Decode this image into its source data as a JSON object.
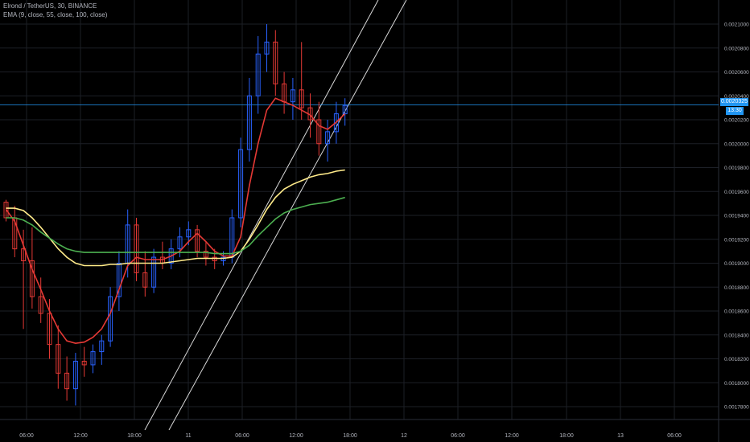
{
  "header": {
    "symbol_line": "Elrond / TetherUS, 30, BINANCE",
    "indicator_line": "EMA (9, close, 55, close, 100, close)"
  },
  "price_badge": {
    "price": "0.0020325",
    "countdown": "13:30"
  },
  "colors": {
    "background": "#000000",
    "grid": "#1c1f26",
    "up_candle": "#2962ff",
    "down_candle": "#e53935",
    "ema9": "#e53935",
    "ema55": "#ffeb8a",
    "ema100": "#4caf50",
    "trend_lines": "#d8d8d8",
    "price_line": "#2196f3"
  },
  "chart_data": {
    "type": "candlestick",
    "title": "Elrond / TetherUS, 30, BINANCE",
    "ylim": [
      0.00176,
      0.00212
    ],
    "y_ticks": [
      "0.0017800",
      "0.0018000",
      "0.0018200",
      "0.0018400",
      "0.0018600",
      "0.0018800",
      "0.0019000",
      "0.0019200",
      "0.0019400",
      "0.0019600",
      "0.0019800",
      "0.0020000",
      "0.0020200",
      "0.0020400",
      "0.0020600",
      "0.0020800",
      "0.0021000"
    ],
    "x_ticks": [
      "06:00",
      "12:00",
      "18:00",
      "11",
      "06:00",
      "12:00",
      "18:00",
      "12",
      "06:00",
      "12:00",
      "18:00",
      "13",
      "06:00"
    ],
    "current_price": 0.0020325,
    "candles": [
      {
        "o": 0.001951,
        "h": 0.001953,
        "l": 0.001935,
        "c": 0.001938
      },
      {
        "o": 0.001938,
        "h": 0.001948,
        "l": 0.001905,
        "c": 0.001912
      },
      {
        "o": 0.001912,
        "h": 0.001928,
        "l": 0.001845,
        "c": 0.001902
      },
      {
        "o": 0.001902,
        "h": 0.00193,
        "l": 0.001862,
        "c": 0.001872
      },
      {
        "o": 0.001872,
        "h": 0.001888,
        "l": 0.00185,
        "c": 0.001858
      },
      {
        "o": 0.001858,
        "h": 0.00187,
        "l": 0.00182,
        "c": 0.001832
      },
      {
        "o": 0.001832,
        "h": 0.001848,
        "l": 0.001795,
        "c": 0.001808
      },
      {
        "o": 0.001808,
        "h": 0.001822,
        "l": 0.001785,
        "c": 0.001795
      },
      {
        "o": 0.001795,
        "h": 0.001825,
        "l": 0.001781,
        "c": 0.001818
      },
      {
        "o": 0.001818,
        "h": 0.00183,
        "l": 0.001805,
        "c": 0.001815
      },
      {
        "o": 0.001815,
        "h": 0.001832,
        "l": 0.001808,
        "c": 0.001826
      },
      {
        "o": 0.001826,
        "h": 0.00184,
        "l": 0.001815,
        "c": 0.001835
      },
      {
        "o": 0.001835,
        "h": 0.00188,
        "l": 0.00183,
        "c": 0.001872
      },
      {
        "o": 0.001872,
        "h": 0.00191,
        "l": 0.00186,
        "c": 0.0019
      },
      {
        "o": 0.0019,
        "h": 0.001945,
        "l": 0.001888,
        "c": 0.001932
      },
      {
        "o": 0.001932,
        "h": 0.001938,
        "l": 0.001885,
        "c": 0.001892
      },
      {
        "o": 0.001892,
        "h": 0.00191,
        "l": 0.001872,
        "c": 0.00188
      },
      {
        "o": 0.00188,
        "h": 0.001912,
        "l": 0.001875,
        "c": 0.001905
      },
      {
        "o": 0.001905,
        "h": 0.001918,
        "l": 0.001895,
        "c": 0.0019
      },
      {
        "o": 0.0019,
        "h": 0.00192,
        "l": 0.001895,
        "c": 0.001912
      },
      {
        "o": 0.001912,
        "h": 0.00193,
        "l": 0.001905,
        "c": 0.001922
      },
      {
        "o": 0.001922,
        "h": 0.001935,
        "l": 0.001915,
        "c": 0.001928
      },
      {
        "o": 0.001928,
        "h": 0.001932,
        "l": 0.001905,
        "c": 0.00191
      },
      {
        "o": 0.00191,
        "h": 0.001918,
        "l": 0.001898,
        "c": 0.001905
      },
      {
        "o": 0.001905,
        "h": 0.001912,
        "l": 0.001895,
        "c": 0.001902
      },
      {
        "o": 0.001902,
        "h": 0.00191,
        "l": 0.001898,
        "c": 0.001905
      },
      {
        "o": 0.001905,
        "h": 0.001945,
        "l": 0.0019,
        "c": 0.001938
      },
      {
        "o": 0.001938,
        "h": 0.002005,
        "l": 0.00193,
        "c": 0.001995
      },
      {
        "o": 0.001995,
        "h": 0.002055,
        "l": 0.001985,
        "c": 0.00204
      },
      {
        "o": 0.00204,
        "h": 0.00209,
        "l": 0.002025,
        "c": 0.002075
      },
      {
        "o": 0.002075,
        "h": 0.0021,
        "l": 0.00206,
        "c": 0.002085
      },
      {
        "o": 0.002085,
        "h": 0.002095,
        "l": 0.00204,
        "c": 0.00205
      },
      {
        "o": 0.00205,
        "h": 0.00206,
        "l": 0.002025,
        "c": 0.002035
      },
      {
        "o": 0.002035,
        "h": 0.002055,
        "l": 0.00202,
        "c": 0.002045
      },
      {
        "o": 0.002045,
        "h": 0.002085,
        "l": 0.00202,
        "c": 0.00203
      },
      {
        "o": 0.00203,
        "h": 0.002042,
        "l": 0.002005,
        "c": 0.00202
      },
      {
        "o": 0.00202,
        "h": 0.002035,
        "l": 0.00199,
        "c": 0.002
      },
      {
        "o": 0.002,
        "h": 0.00202,
        "l": 0.001985,
        "c": 0.00201
      },
      {
        "o": 0.00201,
        "h": 0.002035,
        "l": 0.002,
        "c": 0.002025
      },
      {
        "o": 0.002025,
        "h": 0.002038,
        "l": 0.002015,
        "c": 0.002032
      }
    ],
    "series": [
      {
        "name": "EMA 9",
        "values": [
          0.001945,
          0.001935,
          0.001915,
          0.001895,
          0.001878,
          0.00186,
          0.001845,
          0.001835,
          0.001833,
          0.001834,
          0.001838,
          0.001845,
          0.001858,
          0.001878,
          0.001898,
          0.001905,
          0.001903,
          0.001903,
          0.001903,
          0.001906,
          0.00191,
          0.001918,
          0.001925,
          0.001918,
          0.00191,
          0.001906,
          0.001906,
          0.001922,
          0.001965,
          0.002,
          0.002028,
          0.002038,
          0.002035,
          0.002032,
          0.002028,
          0.002024,
          0.002015,
          0.002012,
          0.002018,
          0.002025
        ]
      },
      {
        "name": "EMA 55",
        "values": [
          0.001946,
          0.001946,
          0.001944,
          0.001938,
          0.00193,
          0.001921,
          0.001912,
          0.001905,
          0.0019,
          0.001898,
          0.001898,
          0.001898,
          0.001899,
          0.001899,
          0.0019,
          0.0019,
          0.0019,
          0.0019,
          0.0019,
          0.001901,
          0.001902,
          0.001903,
          0.001904,
          0.001904,
          0.001904,
          0.001904,
          0.001905,
          0.00191,
          0.00192,
          0.001932,
          0.001945,
          0.001955,
          0.001962,
          0.001966,
          0.001969,
          0.001972,
          0.001974,
          0.001975,
          0.001977,
          0.001978
        ]
      },
      {
        "name": "EMA 100",
        "values": [
          0.001938,
          0.001938,
          0.001936,
          0.001932,
          0.001926,
          0.001921,
          0.001916,
          0.001912,
          0.00191,
          0.001909,
          0.001909,
          0.001909,
          0.001909,
          0.001909,
          0.001909,
          0.001909,
          0.001909,
          0.001909,
          0.001909,
          0.001909,
          0.001909,
          0.001909,
          0.001909,
          0.001909,
          0.001908,
          0.001908,
          0.001908,
          0.00191,
          0.001915,
          0.001923,
          0.00193,
          0.001937,
          0.001942,
          0.001945,
          0.001947,
          0.001949,
          0.00195,
          0.001951,
          0.001953,
          0.001955
        ]
      }
    ]
  }
}
